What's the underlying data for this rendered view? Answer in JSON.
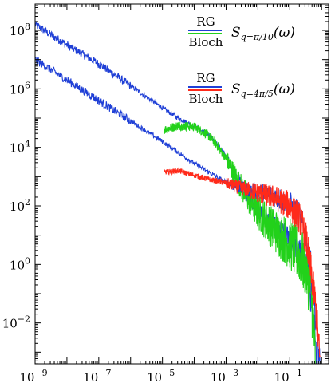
{
  "chart_data": {
    "type": "line",
    "title": "",
    "xlabel": "",
    "ylabel": "",
    "xscale": "log",
    "yscale": "log",
    "xlim_exp": [
      -9,
      0.22
    ],
    "ylim_exp": [
      -3.4,
      8.9
    ],
    "grid": false,
    "legend_position": "top-right",
    "x_ticks": [
      {
        "base": "10",
        "exp": "−9",
        "v": -9
      },
      {
        "base": "10",
        "exp": "−7",
        "v": -7
      },
      {
        "base": "10",
        "exp": "−5",
        "v": -5
      },
      {
        "base": "10",
        "exp": "−3",
        "v": -3
      },
      {
        "base": "10",
        "exp": "−1",
        "v": -1
      }
    ],
    "y_ticks": [
      {
        "base": "10",
        "exp": "8",
        "v": 8
      },
      {
        "base": "10",
        "exp": "6",
        "v": 6
      },
      {
        "base": "10",
        "exp": "4",
        "v": 4
      },
      {
        "base": "10",
        "exp": "2",
        "v": 2
      },
      {
        "base": "10",
        "exp": "0",
        "v": 0
      },
      {
        "base": "10",
        "exp": "−2",
        "v": -2
      }
    ],
    "legend": [
      {
        "label_top": "RG",
        "label_bottom": "Bloch",
        "colors": [
          "#1f3fd6",
          "#22d11a"
        ],
        "math_main": "S",
        "math_sub": "q=π/10",
        "math_arg": "(ω)"
      },
      {
        "label_top": "RG",
        "label_bottom": "Bloch",
        "colors": [
          "#1f3fd6",
          "#ff2a1a"
        ],
        "math_main": "S",
        "math_sub": "q=4π/5",
        "math_arg": "(ω)"
      }
    ],
    "series": [
      {
        "color": "#1f3fd6",
        "noise": 0.16,
        "points": [
          [
            -9,
            8.2
          ],
          [
            -8,
            7.5
          ],
          [
            -7,
            6.85
          ],
          [
            -6,
            6.1
          ],
          [
            -5,
            5.35
          ],
          [
            -4.5,
            5.0
          ],
          [
            -4.0,
            4.72
          ],
          [
            -3.6,
            4.45
          ],
          [
            -3.3,
            4.15
          ],
          [
            -3.0,
            3.7
          ],
          [
            -2.7,
            3.1
          ],
          [
            -2.4,
            2.45
          ],
          [
            -2.0,
            1.85
          ],
          [
            -1.5,
            1.3
          ],
          [
            -1.0,
            0.85
          ],
          [
            -0.7,
            0.45
          ],
          [
            -0.5,
            0.05
          ],
          [
            -0.4,
            -0.5
          ],
          [
            -0.3,
            -1.5
          ],
          [
            -0.2,
            -2.8
          ],
          [
            -0.15,
            -3.4
          ]
        ]
      },
      {
        "color": "#22d11a",
        "noise": 0.32,
        "x_start": -4.95,
        "points": [
          [
            -4.95,
            4.6
          ],
          [
            -4.5,
            4.75
          ],
          [
            -4.0,
            4.7
          ],
          [
            -3.6,
            4.45
          ],
          [
            -3.3,
            4.1
          ],
          [
            -3.0,
            3.6
          ],
          [
            -2.7,
            3.0
          ],
          [
            -2.4,
            2.4
          ],
          [
            -2.0,
            1.8
          ],
          [
            -1.5,
            1.2
          ],
          [
            -1.0,
            0.7
          ],
          [
            -0.7,
            0.3
          ],
          [
            -0.5,
            -0.1
          ],
          [
            -0.35,
            -0.8
          ],
          [
            -0.25,
            -2.0
          ],
          [
            -0.2,
            -3.4
          ]
        ]
      },
      {
        "color": "#1f3fd6",
        "noise": 0.16,
        "points": [
          [
            -9,
            7.0
          ],
          [
            -8,
            6.3
          ],
          [
            -7,
            5.6
          ],
          [
            -6,
            4.9
          ],
          [
            -5,
            4.2
          ],
          [
            -4.0,
            3.45
          ],
          [
            -3.0,
            2.8
          ],
          [
            -2.5,
            2.6
          ],
          [
            -2.0,
            2.5
          ],
          [
            -1.5,
            2.35
          ],
          [
            -1.0,
            2.05
          ],
          [
            -0.7,
            1.65
          ],
          [
            -0.5,
            1.0
          ],
          [
            -0.35,
            0.0
          ],
          [
            -0.25,
            -1.0
          ],
          [
            -0.15,
            -2.5
          ],
          [
            -0.05,
            -3.4
          ]
        ]
      },
      {
        "color": "#ff2a1a",
        "noise": 0.18,
        "x_start": -4.95,
        "points": [
          [
            -4.95,
            3.15
          ],
          [
            -4.5,
            3.2
          ],
          [
            -4.0,
            3.05
          ],
          [
            -3.5,
            2.9
          ],
          [
            -3.0,
            2.78
          ],
          [
            -2.5,
            2.6
          ],
          [
            -2.0,
            2.45
          ],
          [
            -1.5,
            2.3
          ],
          [
            -1.0,
            2.0
          ],
          [
            -0.7,
            1.6
          ],
          [
            -0.5,
            0.95
          ],
          [
            -0.35,
            -0.1
          ],
          [
            -0.2,
            -1.3
          ],
          [
            -0.1,
            -2.6
          ],
          [
            -0.05,
            -3.4
          ]
        ]
      }
    ]
  }
}
